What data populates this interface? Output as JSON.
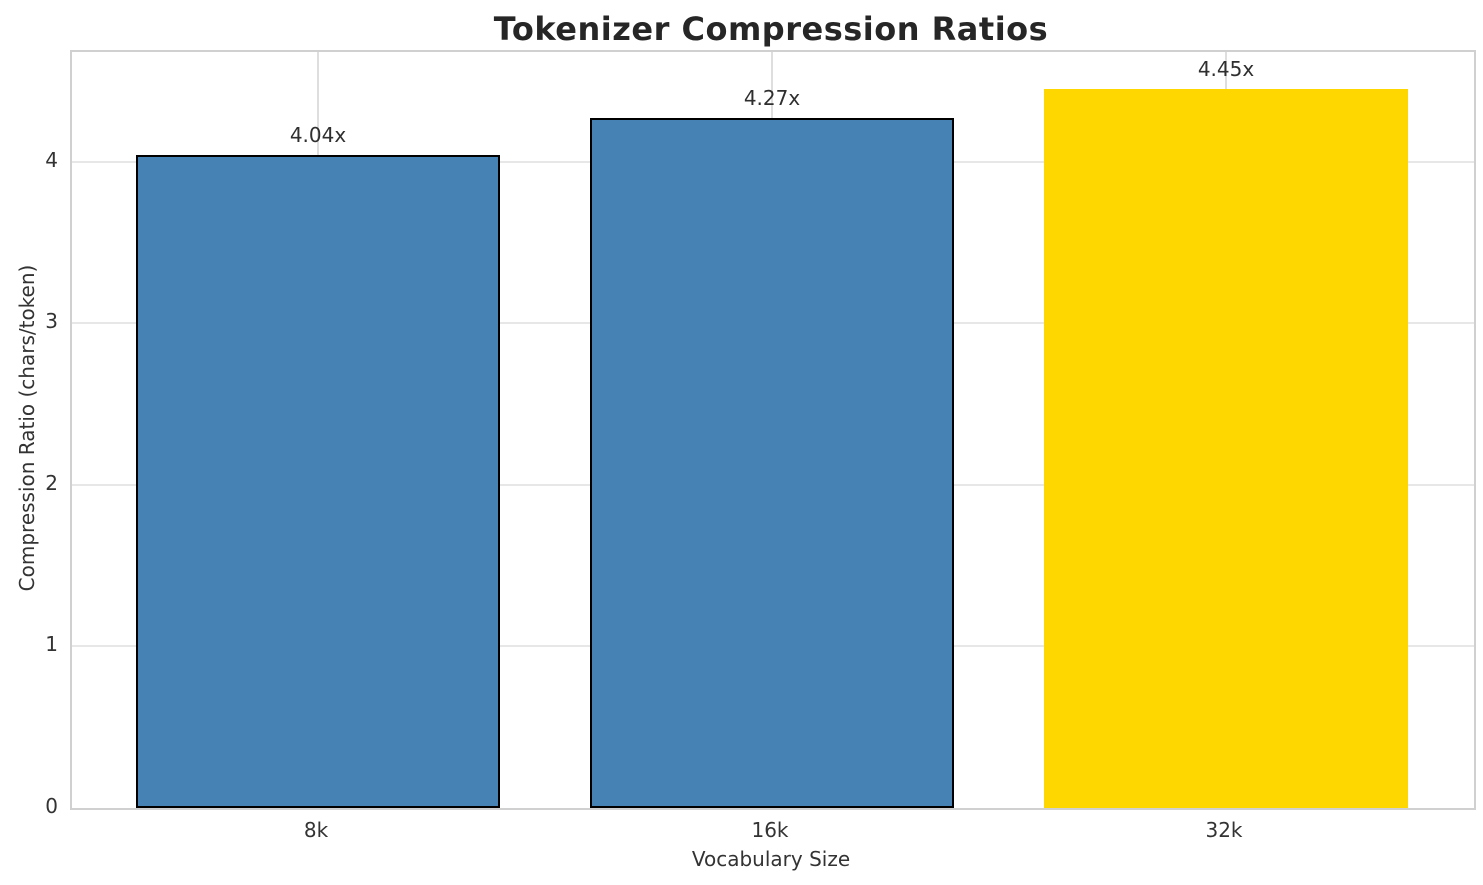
{
  "chart_data": {
    "type": "bar",
    "title": "Tokenizer Compression Ratios",
    "xlabel": "Vocabulary Size",
    "ylabel": "Compression Ratio (chars/token)",
    "categories": [
      "8k",
      "16k",
      "32k"
    ],
    "values": [
      4.04,
      4.27,
      4.45
    ],
    "bar_labels": [
      "4.04x",
      "4.27x",
      "4.45x"
    ],
    "bar_colors": [
      "#4682B4",
      "#4682B4",
      "#FFD700"
    ],
    "bar_edge_colors": [
      "#000000",
      "#000000",
      "#FFD700"
    ],
    "ylim": [
      0,
      4.68
    ],
    "yticks": [
      0,
      1,
      2,
      3,
      4
    ],
    "ytick_labels": [
      "0",
      "1",
      "2",
      "3",
      "4"
    ],
    "grid": true,
    "legend": false,
    "accent_colors": {
      "default_bar": "#4682B4",
      "highlight_bar": "#FFD700",
      "grid": "#e7e7e7",
      "spine": "#d0d0d0",
      "text": "#333333",
      "title": "#262626"
    }
  }
}
